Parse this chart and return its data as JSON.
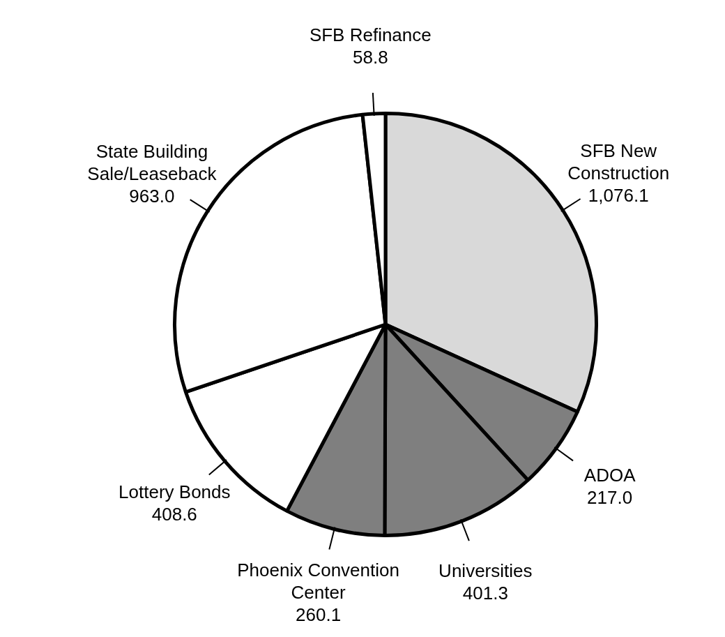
{
  "chart_data": {
    "type": "pie",
    "categories": [
      "SFB New Construction",
      "ADOA",
      "Universities",
      "Phoenix Convention Center",
      "Lottery Bonds",
      "State Building Sale/Leaseback",
      "SFB Refinance"
    ],
    "values": [
      1076.1,
      217.0,
      401.3,
      260.1,
      408.6,
      963.0,
      58.8
    ],
    "colors": [
      "#d9d9d9",
      "#7f7f7f",
      "#7f7f7f",
      "#7f7f7f",
      "#ffffff",
      "#ffffff",
      "#ffffff"
    ],
    "value_labels": [
      "1,076.1",
      "217.0",
      "401.3",
      "260.1",
      "408.6",
      "963.0",
      "58.8"
    ],
    "legend": false
  }
}
